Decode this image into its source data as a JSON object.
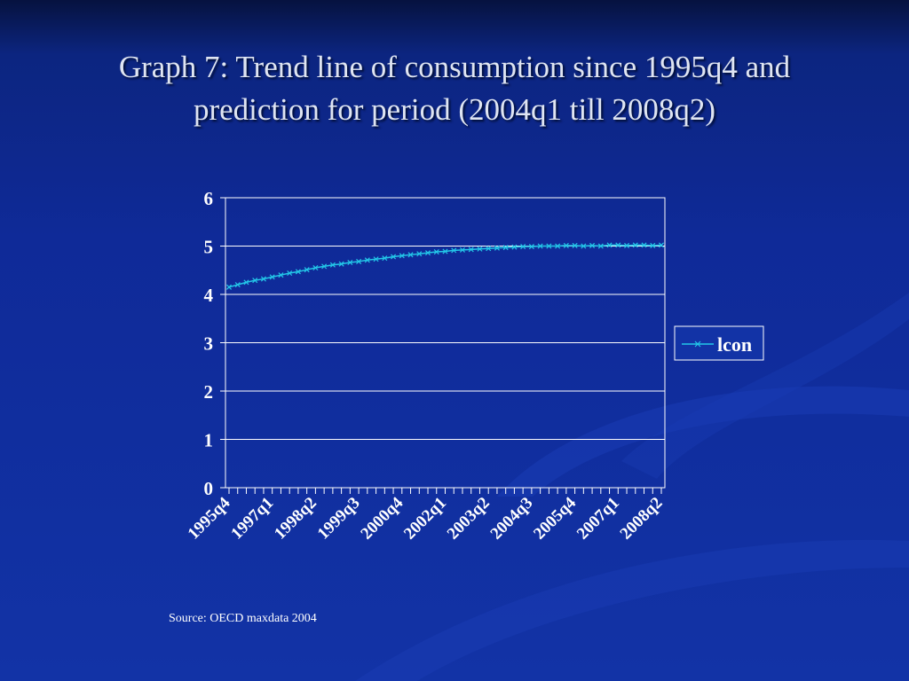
{
  "slide": {
    "title": "Graph 7: Trend line of consumption since 1995q4 and prediction for period (2004q1 till 2008q2)",
    "source": "Source: OECD maxdata 2004"
  },
  "colors": {
    "background": "#1233a6",
    "series_line": "#23c7e8",
    "gridline": "#ffffff",
    "legend_box": "#1233a6"
  },
  "chart_data": {
    "type": "line",
    "title": "",
    "xlabel": "",
    "ylabel": "",
    "ylim": [
      0,
      6
    ],
    "yticks": [
      0,
      1,
      2,
      3,
      4,
      5,
      6
    ],
    "grid": true,
    "legend": "right",
    "x": [
      "1995q4",
      "1996q1",
      "1996q2",
      "1996q3",
      "1996q4",
      "1997q1",
      "1997q2",
      "1997q3",
      "1997q4",
      "1998q1",
      "1998q2",
      "1998q3",
      "1998q4",
      "1999q1",
      "1999q2",
      "1999q3",
      "1999q4",
      "2000q1",
      "2000q2",
      "2000q3",
      "2000q4",
      "2001q1",
      "2001q2",
      "2001q3",
      "2001q4",
      "2002q1",
      "2002q2",
      "2002q3",
      "2002q4",
      "2003q1",
      "2003q2",
      "2003q3",
      "2003q4",
      "2004q1",
      "2004q2",
      "2004q3",
      "2004q4",
      "2005q1",
      "2005q2",
      "2005q3",
      "2005q4",
      "2006q1",
      "2006q2",
      "2006q3",
      "2006q4",
      "2007q1",
      "2007q2",
      "2007q3",
      "2007q4",
      "2008q1",
      "2008q2"
    ],
    "xtick_labels": [
      "1995q4",
      "1997q1",
      "1998q2",
      "1999q3",
      "2000q4",
      "2002q1",
      "2003q2",
      "2004q3",
      "2005q4",
      "2007q1",
      "2008q2"
    ],
    "series": [
      {
        "name": "lcon",
        "values": [
          4.15,
          4.2,
          4.25,
          4.29,
          4.32,
          4.36,
          4.4,
          4.44,
          4.47,
          4.51,
          4.55,
          4.58,
          4.61,
          4.63,
          4.66,
          4.68,
          4.71,
          4.73,
          4.75,
          4.78,
          4.8,
          4.82,
          4.84,
          4.86,
          4.88,
          4.89,
          4.91,
          4.92,
          4.93,
          4.94,
          4.95,
          4.96,
          4.97,
          4.98,
          4.99,
          4.99,
          5.0,
          5.0,
          5.0,
          5.01,
          5.01,
          5.0,
          5.01,
          5.0,
          5.02,
          5.02,
          5.01,
          5.02,
          5.02,
          5.01,
          5.02
        ]
      }
    ]
  }
}
